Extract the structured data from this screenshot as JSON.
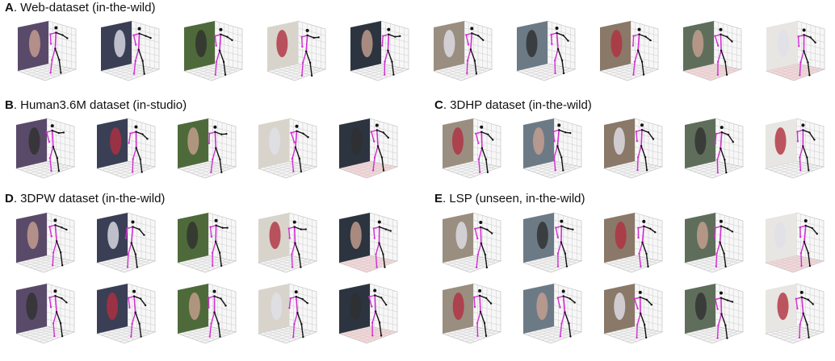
{
  "panels": [
    {
      "letter": "A",
      "caption": ". Web-dataset (in-the-wild)"
    },
    {
      "letter": "B",
      "caption": ". Human3.6M dataset (in-studio)"
    },
    {
      "letter": "C",
      "caption": ". 3DHP dataset (in-the-wild)"
    },
    {
      "letter": "D",
      "caption": ". 3DPW dataset (in-the-wild)"
    },
    {
      "letter": "E",
      "caption": ". LSP (unseen, in-the-wild)"
    }
  ]
}
